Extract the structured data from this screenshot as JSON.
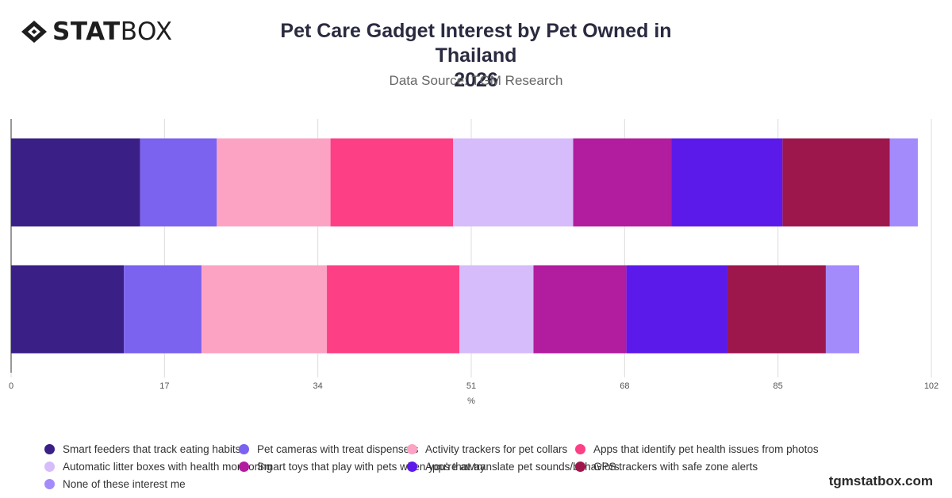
{
  "brand": {
    "logo_bold": "STAT",
    "logo_light": "BOX",
    "watermark": "tgmstatbox.com"
  },
  "header": {
    "title_line1": "Pet Care Gadget Interest by Pet Owned in Thailand",
    "title_line2": "2026",
    "subtitle": "Data Source: TGM Research"
  },
  "colors": {
    "series": [
      "#3a1f86",
      "#7b62ef",
      "#fca3c4",
      "#fd3f85",
      "#d6bcfb",
      "#b21c9e",
      "#5c1aea",
      "#9d174d",
      "#a48bfc"
    ],
    "grid": "#dcdcdc",
    "axis": "#333333"
  },
  "chart_data": {
    "type": "bar",
    "orientation": "horizontal",
    "stacked": true,
    "categories": [
      "",
      ""
    ],
    "xlabel": "%",
    "xlim": [
      0,
      102
    ],
    "xticks": [
      0,
      17,
      34,
      51,
      68,
      85,
      102
    ],
    "grid": true,
    "legend_position": "bottom",
    "series": [
      {
        "name": "Smart feeders that track eating habits",
        "values": [
          14.3,
          12.5
        ]
      },
      {
        "name": "Pet cameras with treat dispensers",
        "values": [
          8.5,
          8.6
        ]
      },
      {
        "name": "Activity trackers for pet collars",
        "values": [
          12.6,
          13.9
        ]
      },
      {
        "name": "Apps that identify pet health issues from photos",
        "values": [
          13.6,
          14.7
        ]
      },
      {
        "name": "Automatic litter boxes with health monitoring",
        "values": [
          13.3,
          8.2
        ]
      },
      {
        "name": "Smart toys that play with pets when you're away",
        "values": [
          10.9,
          10.3
        ]
      },
      {
        "name": "Apps that translate pet sounds/behaviors",
        "values": [
          12.3,
          11.2
        ]
      },
      {
        "name": "GPS trackers with safe zone alerts",
        "values": [
          11.9,
          10.9
        ]
      },
      {
        "name": "None of these interest me",
        "values": [
          3.1,
          3.7
        ]
      }
    ]
  }
}
